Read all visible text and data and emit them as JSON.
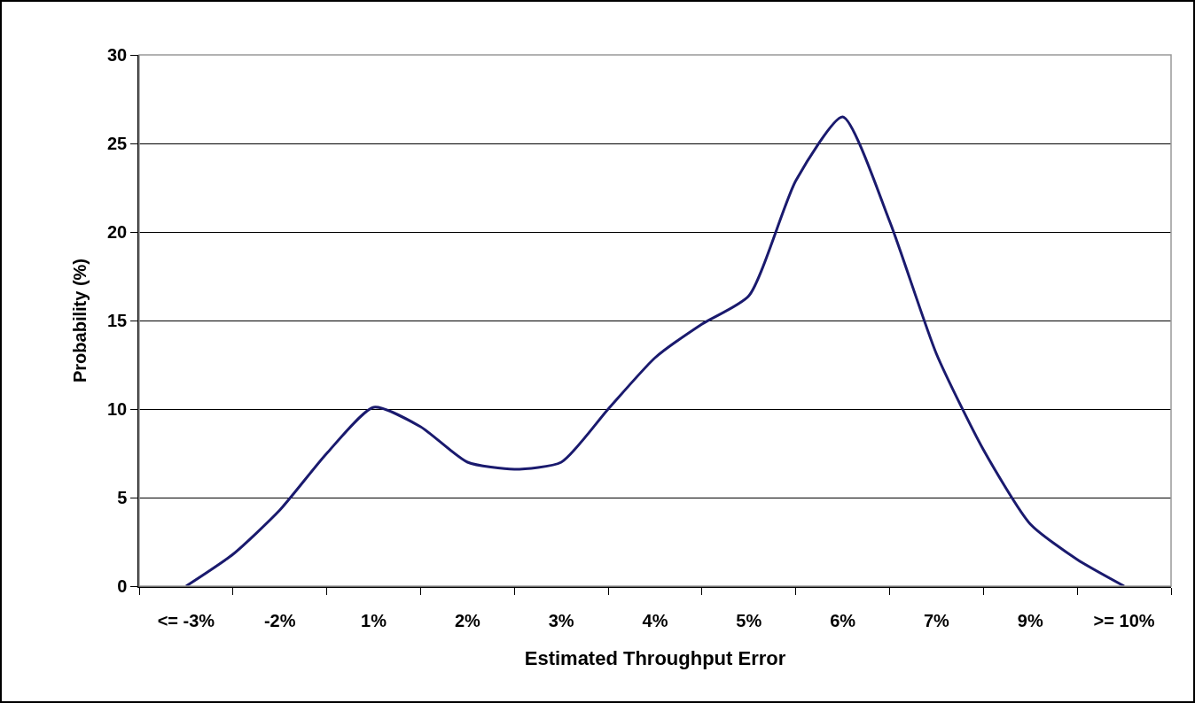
{
  "chart_data": {
    "type": "line",
    "xlabel": "Estimated Throughput Error",
    "ylabel": "Probability (%)",
    "categories": [
      "<= -3%",
      null,
      "-2%",
      null,
      "1%",
      null,
      "2%",
      null,
      "3%",
      null,
      "4%",
      null,
      "5%",
      null,
      "6%",
      null,
      "7%",
      null,
      "9%",
      null,
      ">= 10%"
    ],
    "series": [
      {
        "color": "#1a1a6e",
        "values": [
          0,
          1.8,
          4.3,
          7.5,
          10.1,
          9.0,
          7.0,
          6.6,
          7.0,
          10.0,
          12.9,
          14.8,
          16.4,
          22.9,
          26.5,
          20.6,
          13.1,
          7.7,
          3.5,
          1.5,
          0
        ]
      }
    ],
    "ylim": [
      0,
      30
    ],
    "yticks": [
      0,
      5,
      10,
      15,
      20,
      25,
      30
    ],
    "grid": "y",
    "legend": false,
    "marker": "none",
    "line_style": "solid"
  }
}
